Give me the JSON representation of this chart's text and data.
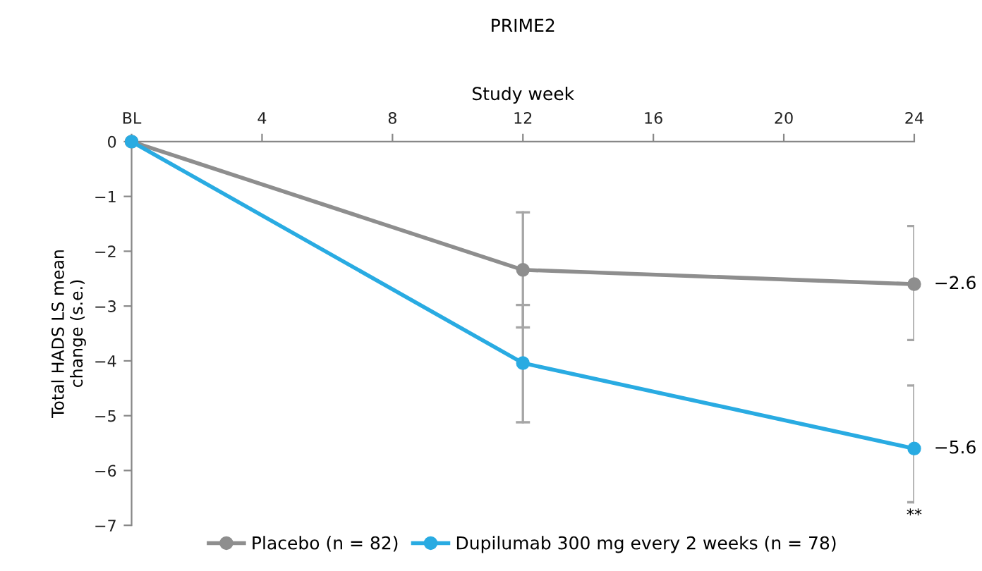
{
  "chart_data": {
    "type": "line",
    "title": "PRIME2",
    "xlabel": "Study week",
    "ylabel": "Total HADS LS mean\nchange (s.e.)",
    "x": [
      0,
      12,
      24
    ],
    "series": [
      {
        "name": "Placebo (n = 82)",
        "color": "#8e8e8e",
        "values": [
          0,
          -2.34,
          -2.6
        ],
        "errors": [
          null,
          [
            -3.39,
            -1.29
          ],
          [
            -3.62,
            -1.54
          ]
        ],
        "value_labels": [
          null,
          null,
          "−2.6"
        ]
      },
      {
        "name": "Dupilumab 300 mg every 2 weeks (n = 78)",
        "color": "#29abe2",
        "values": [
          0,
          -4.04,
          -5.6
        ],
        "errors": [
          null,
          [
            -5.12,
            -2.98
          ],
          [
            -6.58,
            -4.45
          ]
        ],
        "value_labels": [
          null,
          null,
          "−5.6"
        ]
      }
    ],
    "xlim": [
      0,
      24
    ],
    "ylim": [
      -7,
      0
    ],
    "xticks": [
      {
        "value": 0,
        "label": "BL"
      },
      4,
      8,
      12,
      16,
      20,
      24
    ],
    "yticks": [
      0,
      {
        "value": -1,
        "label": "−1"
      },
      {
        "value": -2,
        "label": "−2"
      },
      {
        "value": -3,
        "label": "−3"
      },
      {
        "value": -4,
        "label": "−4"
      },
      {
        "value": -5,
        "label": "−5"
      },
      {
        "value": -6,
        "label": "−6"
      },
      {
        "value": -7,
        "label": "−7"
      }
    ],
    "annotations": [
      "**"
    ],
    "marker": "circle",
    "line_style": "solid",
    "grid": false,
    "legend": "bottom"
  }
}
